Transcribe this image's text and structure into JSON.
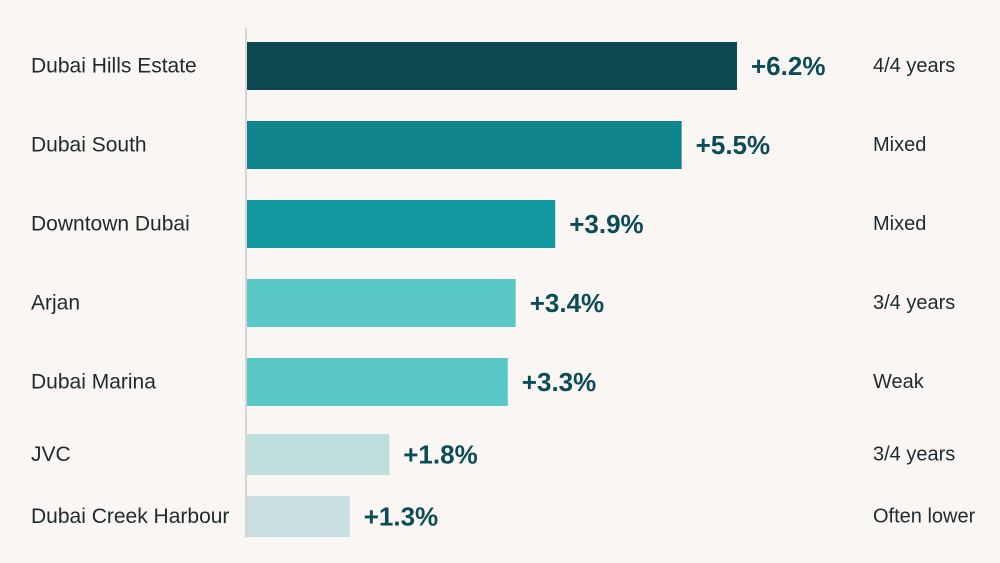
{
  "chart_data": {
    "type": "bar",
    "orientation": "horizontal",
    "title": "",
    "xlabel": "",
    "ylabel": "",
    "xlim": [
      0,
      6.2
    ],
    "grid": false,
    "legend": "none",
    "categories": [
      "Dubai Hills Estate",
      "Dubai South",
      "Downtown Dubai",
      "Arjan",
      "Dubai Marina",
      "JVC",
      "Dubai Creek Harbour"
    ],
    "values": [
      6.2,
      5.5,
      3.9,
      3.4,
      3.3,
      1.8,
      1.3
    ],
    "value_labels": [
      "+6.2%",
      "+5.5%",
      "+3.9%",
      "+3.4%",
      "+3.3%",
      "+1.8%",
      "+1.3%"
    ],
    "notes": [
      "4/4 years",
      "Mixed",
      "Mixed",
      "3/4 years",
      "Weak",
      "3/4 years",
      "Often lower"
    ],
    "bar_colors": [
      "#0c4850",
      "#11858c",
      "#129aa0",
      "#5ac8c6",
      "#5ac8c6",
      "#bfdddd",
      "#c9dfe1"
    ],
    "value_color": "#0b4c57",
    "axis_color": "#c8cccd"
  }
}
